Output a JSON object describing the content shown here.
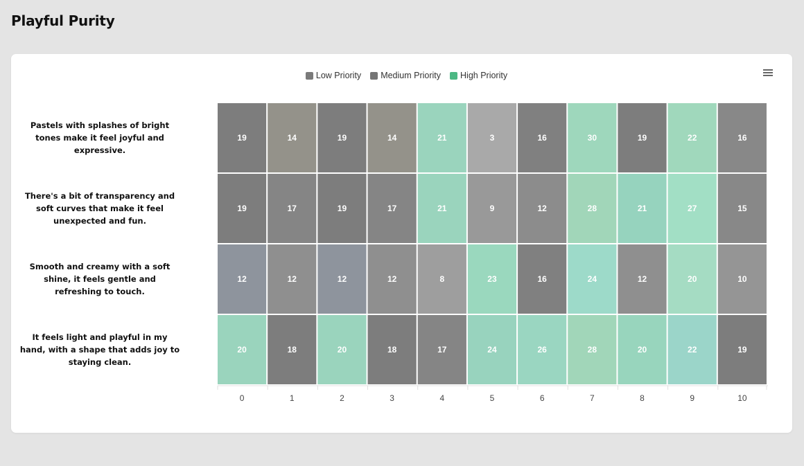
{
  "page": {
    "title": "Playful Purity"
  },
  "colors": {
    "low": "#7a7a7a",
    "medium": "#757575",
    "high": "#4cb884"
  },
  "chart_data": {
    "type": "heatmap",
    "title": "",
    "xlabel": "",
    "ylabel": "",
    "x_categories": [
      "0",
      "1",
      "2",
      "3",
      "4",
      "5",
      "6",
      "7",
      "8",
      "9",
      "10"
    ],
    "y_categories": [
      "Pastels with splashes of bright tones make it feel joyful and expressive.",
      "There's a bit of transparency and soft curves that make it feel unexpected and fun.",
      "Smooth and creamy with a soft shine, it feels gentle and refreshing to touch.",
      "It feels light and playful in my hand, with a shape that adds joy to staying clean."
    ],
    "values": [
      [
        19,
        14,
        19,
        14,
        21,
        3,
        16,
        30,
        19,
        22,
        16
      ],
      [
        19,
        17,
        19,
        17,
        21,
        9,
        12,
        28,
        21,
        27,
        15
      ],
      [
        12,
        12,
        12,
        12,
        8,
        23,
        16,
        24,
        12,
        20,
        10
      ],
      [
        20,
        18,
        20,
        18,
        17,
        24,
        26,
        28,
        20,
        22,
        19
      ]
    ],
    "cell_colors": [
      [
        "#7d7d7d",
        "#94928a",
        "#7d7d7d",
        "#94928a",
        "#9ad4bd",
        "#a9a9a9",
        "#808080",
        "#9ed7bc",
        "#7d7d7d",
        "#a0d8bc",
        "#888888"
      ],
      [
        "#7d7d7d",
        "#858585",
        "#7d7d7d",
        "#858585",
        "#9ad4bd",
        "#999999",
        "#8c8c8c",
        "#a1d6b9",
        "#96d3be",
        "#a2dfc5",
        "#888888"
      ],
      [
        "#8e949d",
        "#8f8f8f",
        "#8e949d",
        "#8f8f8f",
        "#9e9e9e",
        "#9ad8be",
        "#808080",
        "#9ddac9",
        "#8f8f8f",
        "#a5dcc3",
        "#959595"
      ],
      [
        "#9ad4bd",
        "#7d7d7d",
        "#9ad4bd",
        "#7d7d7d",
        "#858585",
        "#98d3be",
        "#9ad6c1",
        "#a1d6b9",
        "#98d5bd",
        "#9bd5c9",
        "#7d7d7d"
      ]
    ],
    "legend": {
      "position": "top",
      "items": [
        {
          "name": "Low Priority",
          "color": "#7a7a7a"
        },
        {
          "name": "Medium Priority",
          "color": "#757575"
        },
        {
          "name": "High Priority",
          "color": "#4cb884"
        }
      ]
    }
  }
}
